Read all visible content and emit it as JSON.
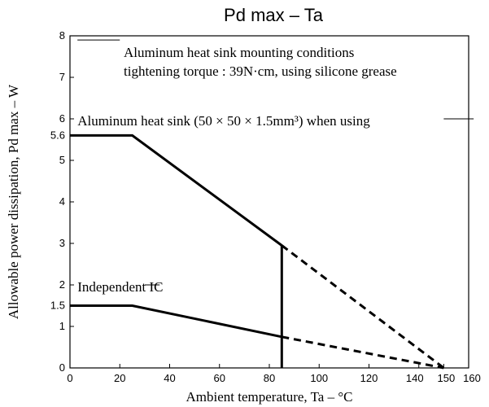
{
  "chart_data": {
    "type": "line",
    "title": "Pd max – Ta",
    "xlabel": "Ambient temperature, Ta – °C",
    "ylabel": "Allowable power dissipation, Pd max – W",
    "xlim": [
      0,
      160
    ],
    "ylim": [
      0,
      8
    ],
    "x_ticks": [
      "0",
      "20",
      "40",
      "60",
      "80",
      "100",
      "120",
      "140",
      "150",
      "160"
    ],
    "y_ticks": [
      "0",
      "1",
      "1.5",
      "2",
      "3",
      "4",
      "5",
      "5.6",
      "6",
      "7",
      "8"
    ],
    "grid": false,
    "series": [
      {
        "name": "Aluminum heat sink (50 × 50 × 1.5mm³) when using",
        "solid": [
          [
            0,
            5.6
          ],
          [
            25,
            5.6
          ],
          [
            85,
            2.95
          ]
        ],
        "dashed": [
          [
            85,
            2.95
          ],
          [
            150,
            0
          ]
        ]
      },
      {
        "name": "Independent IC",
        "solid": [
          [
            0,
            1.5
          ],
          [
            25,
            1.5
          ],
          [
            85,
            0.75
          ]
        ],
        "dashed": [
          [
            85,
            0.75
          ],
          [
            150,
            0
          ]
        ]
      }
    ],
    "vertical_marker": {
      "x": 85,
      "from": 0,
      "to": 2.95
    },
    "annotation": [
      "Aluminum heat sink mounting conditions",
      "tightening torque : 39N·cm, using silicone grease"
    ]
  }
}
